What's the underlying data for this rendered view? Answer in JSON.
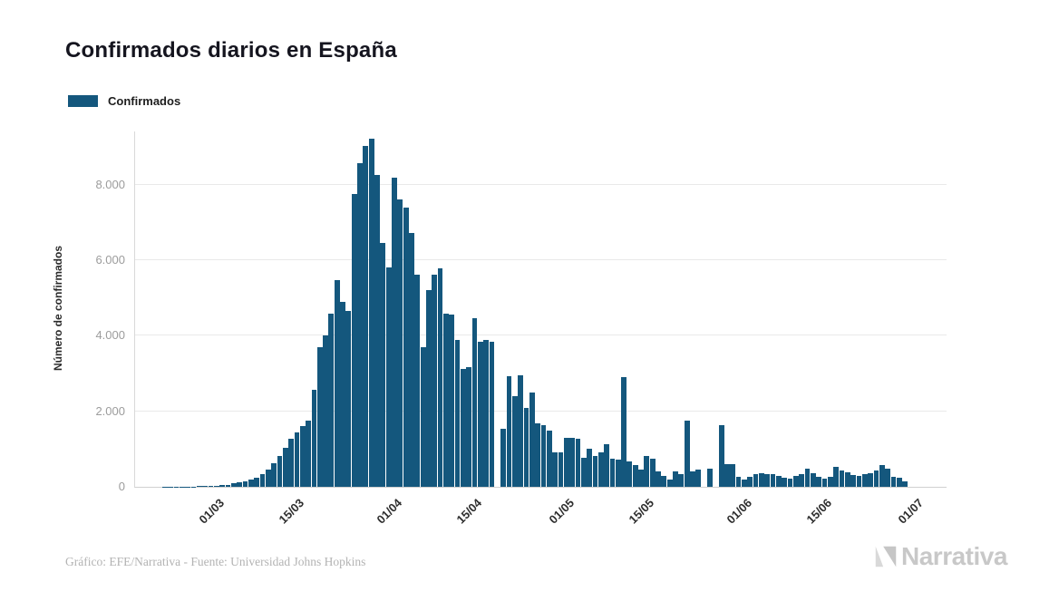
{
  "header": {
    "title": "Confirmados diarios en España"
  },
  "legend": {
    "items": [
      {
        "label": "Confirmados",
        "color": "#14577d"
      }
    ]
  },
  "chart_data": {
    "type": "bar",
    "title": "Confirmados diarios en España",
    "xlabel": "",
    "ylabel": "Número de confirmados",
    "ylim": [
      0,
      9408
    ],
    "grid": true,
    "legend_position": "top-left",
    "bar_color": "#14577d",
    "ytick_values": [
      0,
      2000,
      4000,
      6000,
      8000
    ],
    "ytick_labels": [
      "0",
      "2.000",
      "4.000",
      "6.000",
      "8.000"
    ],
    "xticks": [
      {
        "label": "01/03",
        "index": 9
      },
      {
        "label": "15/03",
        "index": 23
      },
      {
        "label": "01/04",
        "index": 40
      },
      {
        "label": "15/04",
        "index": 54
      },
      {
        "label": "01/05",
        "index": 70
      },
      {
        "label": "15/05",
        "index": 84
      },
      {
        "label": "01/06",
        "index": 101
      },
      {
        "label": "15/06",
        "index": 115
      },
      {
        "label": "01/07",
        "index": 131
      }
    ],
    "categories": [
      "21/02",
      "22/02",
      "23/02",
      "24/02",
      "25/02",
      "26/02",
      "27/02",
      "28/02",
      "29/02",
      "01/03",
      "02/03",
      "03/03",
      "04/03",
      "05/03",
      "06/03",
      "07/03",
      "08/03",
      "09/03",
      "10/03",
      "11/03",
      "12/03",
      "13/03",
      "14/03",
      "15/03",
      "16/03",
      "17/03",
      "18/03",
      "19/03",
      "20/03",
      "21/03",
      "22/03",
      "23/03",
      "24/03",
      "25/03",
      "26/03",
      "27/03",
      "28/03",
      "29/03",
      "30/03",
      "31/03",
      "01/04",
      "02/04",
      "03/04",
      "04/04",
      "05/04",
      "06/04",
      "07/04",
      "08/04",
      "09/04",
      "10/04",
      "11/04",
      "12/04",
      "13/04",
      "14/04",
      "15/04",
      "16/04",
      "17/04",
      "18/04",
      "19/04",
      "20/04",
      "21/04",
      "22/04",
      "23/04",
      "24/04",
      "25/04",
      "26/04",
      "27/04",
      "28/04",
      "29/04",
      "30/04",
      "01/05",
      "02/05",
      "03/05",
      "04/05",
      "05/05",
      "06/05",
      "07/05",
      "08/05",
      "09/05",
      "10/05",
      "11/05",
      "12/05",
      "13/05",
      "14/05",
      "15/05",
      "16/05",
      "17/05",
      "18/05",
      "19/05",
      "20/05",
      "21/05",
      "22/05",
      "23/05",
      "24/05",
      "25/05",
      "26/05",
      "27/05",
      "28/05",
      "29/05",
      "30/05",
      "31/05",
      "01/06",
      "02/06",
      "03/06",
      "04/06",
      "05/06",
      "06/06",
      "07/06",
      "08/06",
      "09/06",
      "10/06",
      "11/06",
      "12/06",
      "13/06",
      "14/06",
      "15/06",
      "16/06",
      "17/06",
      "18/06",
      "19/06",
      "20/06",
      "21/06",
      "22/06",
      "23/06",
      "24/06",
      "25/06",
      "26/06",
      "27/06",
      "28/06",
      "29/06"
    ],
    "values": [
      4,
      6,
      8,
      10,
      12,
      10,
      14,
      16,
      20,
      30,
      40,
      56,
      88,
      128,
      152,
      184,
      248,
      344,
      448,
      632,
      808,
      1032,
      1272,
      1448,
      1608,
      1752,
      2568,
      3704,
      4008,
      4584,
      5464,
      4888,
      4664,
      7752,
      8568,
      9032,
      9208,
      8264,
      6448,
      5808,
      8184,
      7608,
      7384,
      6712,
      5608,
      3704,
      5208,
      5608,
      5784,
      4584,
      4568,
      3888,
      3128,
      3168,
      4472,
      3832,
      3888,
      3848,
      0,
      1528,
      2928,
      2400,
      2952,
      2088,
      2504,
      1688,
      1624,
      1488,
      904,
      904,
      1288,
      1304,
      1272,
      760,
      1008,
      808,
      904,
      1128,
      744,
      712,
      2904,
      664,
      568,
      448,
      808,
      744,
      408,
      288,
      184,
      408,
      344,
      1752,
      408,
      448,
      0,
      488,
      0,
      1624,
      608,
      608,
      264,
      184,
      264,
      328,
      368,
      344,
      344,
      288,
      248,
      208,
      288,
      344,
      472,
      368,
      264,
      208,
      264,
      528,
      424,
      392,
      312,
      280,
      328,
      368,
      424,
      568,
      472,
      264,
      232,
      152
    ]
  },
  "footer": {
    "credit": "Gráfico: EFE/Narrativa - Fuente: Universidad Johns Hopkins",
    "logo_text": "Narrativa"
  }
}
